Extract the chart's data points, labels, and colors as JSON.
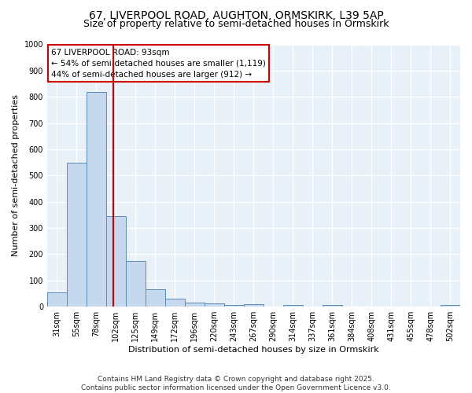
{
  "title_line1": "67, LIVERPOOL ROAD, AUGHTON, ORMSKIRK, L39 5AP",
  "title_line2": "Size of property relative to semi-detached houses in Ormskirk",
  "categories": [
    "31sqm",
    "55sqm",
    "78sqm",
    "102sqm",
    "125sqm",
    "149sqm",
    "172sqm",
    "196sqm",
    "220sqm",
    "243sqm",
    "267sqm",
    "290sqm",
    "314sqm",
    "337sqm",
    "361sqm",
    "384sqm",
    "408sqm",
    "431sqm",
    "455sqm",
    "478sqm",
    "502sqm"
  ],
  "values": [
    55,
    550,
    820,
    345,
    175,
    68,
    32,
    16,
    14,
    7,
    10,
    0,
    8,
    0,
    7,
    0,
    0,
    0,
    0,
    0,
    8
  ],
  "bar_color": "#c5d8ed",
  "bar_edge_color": "#5b8db8",
  "vline_x": 2.87,
  "vline_color": "#cc0000",
  "ylabel": "Number of semi-detached properties",
  "xlabel": "Distribution of semi-detached houses by size in Ormskirk",
  "ylim": [
    0,
    1000
  ],
  "yticks": [
    0,
    100,
    200,
    300,
    400,
    500,
    600,
    700,
    800,
    900,
    1000
  ],
  "annotation_title": "67 LIVERPOOL ROAD: 93sqm",
  "annotation_line1": "← 54% of semi-detached houses are smaller (1,119)",
  "annotation_line2": "44% of semi-detached houses are larger (912) →",
  "annotation_box_color": "#ffffff",
  "annotation_box_edge_color": "#cc0000",
  "footnote_line1": "Contains HM Land Registry data © Crown copyright and database right 2025.",
  "footnote_line2": "Contains public sector information licensed under the Open Government Licence v3.0.",
  "background_color": "#e8f0f8",
  "grid_color": "#ffffff",
  "title_fontsize": 10,
  "subtitle_fontsize": 9,
  "axis_label_fontsize": 8,
  "tick_fontsize": 7,
  "annotation_fontsize": 7.5,
  "footnote_fontsize": 6.5
}
